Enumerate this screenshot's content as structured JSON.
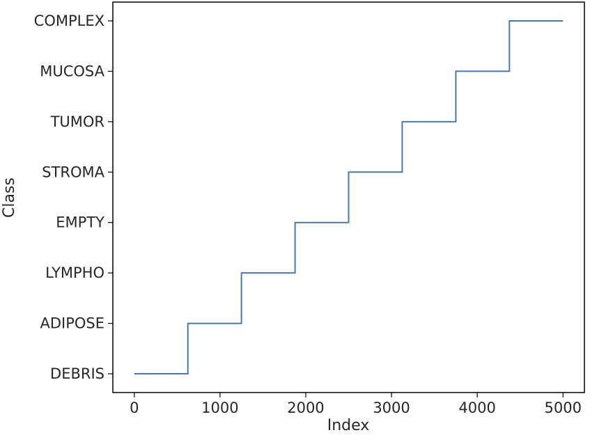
{
  "chart_data": {
    "type": "line",
    "step": true,
    "title": "",
    "xlabel": "Index",
    "ylabel": "Class",
    "xlim": [
      -250,
      5250
    ],
    "x_ticks": [
      0,
      1000,
      2000,
      3000,
      4000,
      5000
    ],
    "categories": [
      "DEBRIS",
      "ADIPOSE",
      "LYMPHO",
      "EMPTY",
      "STROMA",
      "TUMOR",
      "MUCOSA",
      "COMPLEX"
    ],
    "grid": false,
    "legend": "none",
    "line_color": "#4a77b0",
    "series": [
      {
        "x": [
          0,
          625,
          625,
          1250,
          1250,
          1875,
          1875,
          2500,
          2500,
          3125,
          3125,
          3750,
          3750,
          4375,
          4375,
          5000
        ],
        "y": [
          "DEBRIS",
          "DEBRIS",
          "ADIPOSE",
          "ADIPOSE",
          "LYMPHO",
          "LYMPHO",
          "EMPTY",
          "EMPTY",
          "STROMA",
          "STROMA",
          "TUMOR",
          "TUMOR",
          "MUCOSA",
          "MUCOSA",
          "COMPLEX",
          "COMPLEX"
        ]
      }
    ]
  }
}
